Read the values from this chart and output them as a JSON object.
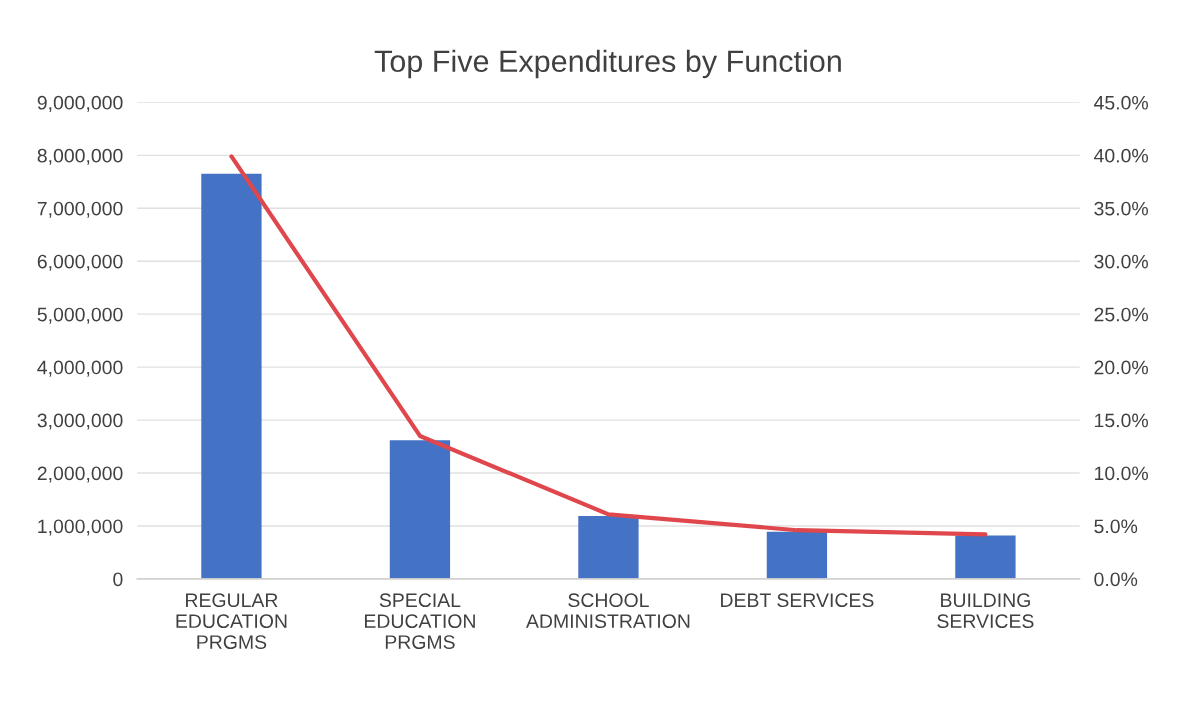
{
  "chart_data": {
    "type": "bar",
    "title": "Top Five Expenditures by Function",
    "categories": [
      "REGULAR\nEDUCATION\nPRGMS",
      "SPECIAL\nEDUCATION\nPRGMS",
      "SCHOOL\nADMINISTRATION",
      "DEBT SERVICES",
      "BUILDING\nSERVICES"
    ],
    "series": [
      {
        "color": "#4472c4",
        "values": [
          7650000,
          2620000,
          1190000,
          890000,
          820000
        ]
      },
      {
        "type": "line",
        "axis": "y2",
        "color": "#e0474c",
        "values": [
          39.9,
          13.5,
          6.1,
          4.6,
          4.2
        ]
      }
    ],
    "ylim": [
      0,
      9000000
    ],
    "yticks": [
      {
        "value": 0,
        "label": "0"
      },
      {
        "value": 1000000,
        "label": "1,000,000"
      },
      {
        "value": 2000000,
        "label": "2,000,000"
      },
      {
        "value": 3000000,
        "label": "3,000,000"
      },
      {
        "value": 4000000,
        "label": "4,000,000"
      },
      {
        "value": 5000000,
        "label": "5,000,000"
      },
      {
        "value": 6000000,
        "label": "6,000,000"
      },
      {
        "value": 7000000,
        "label": "7,000,000"
      },
      {
        "value": 8000000,
        "label": "8,000,000"
      },
      {
        "value": 9000000,
        "label": "9,000,000"
      }
    ],
    "y2lim": [
      0,
      45
    ],
    "y2ticks": [
      {
        "value": 0,
        "label": "0.0%"
      },
      {
        "value": 5,
        "label": "5.0%"
      },
      {
        "value": 10,
        "label": "10.0%"
      },
      {
        "value": 15,
        "label": "15.0%"
      },
      {
        "value": 20,
        "label": "20.0%"
      },
      {
        "value": 25,
        "label": "25.0%"
      },
      {
        "value": 30,
        "label": "30.0%"
      },
      {
        "value": 35,
        "label": "35.0%"
      },
      {
        "value": 40,
        "label": "40.0%"
      },
      {
        "value": 45,
        "label": "45.0%"
      }
    ],
    "grid": "y",
    "legend": false,
    "marker": "none",
    "line_style": "solid"
  }
}
